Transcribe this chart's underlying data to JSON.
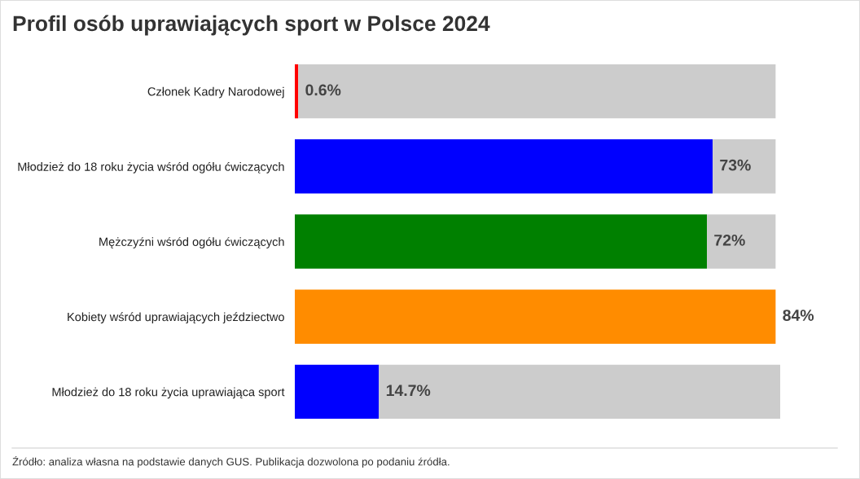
{
  "chart_data": {
    "type": "bar",
    "orientation": "horizontal",
    "stacked": true,
    "title": "Profil osób uprawiających sport w Polsce 2024",
    "categories": [
      "Członek Kadry Narodowej",
      "Młodzież do 18 roku życia wśród ogółu ćwiczących",
      "Mężczyźni wśród ogółu ćwiczących",
      "Kobiety wśród uprawiających jeździectwo",
      "Młodzież do 18 roku życia uprawiająca sport"
    ],
    "series": [
      {
        "colors": [
          "#ff0000",
          "#0000ff",
          "#008000",
          "#ff8c00",
          "#0000ff"
        ],
        "values": [
          0.6,
          73,
          72,
          84,
          14.7
        ],
        "value_labels": [
          "0.6%",
          "73%",
          "72%",
          "84%",
          "14.7%"
        ]
      },
      {
        "color": "#cccccc",
        "values": [
          83.4,
          11,
          12,
          0,
          70.1
        ]
      }
    ],
    "annotations": [
      "Źródło: analiza własna na podstawie danych GUS. Publikacja dozwolona po podaniu źródła."
    ],
    "tick_labels": "y",
    "grid": false
  }
}
